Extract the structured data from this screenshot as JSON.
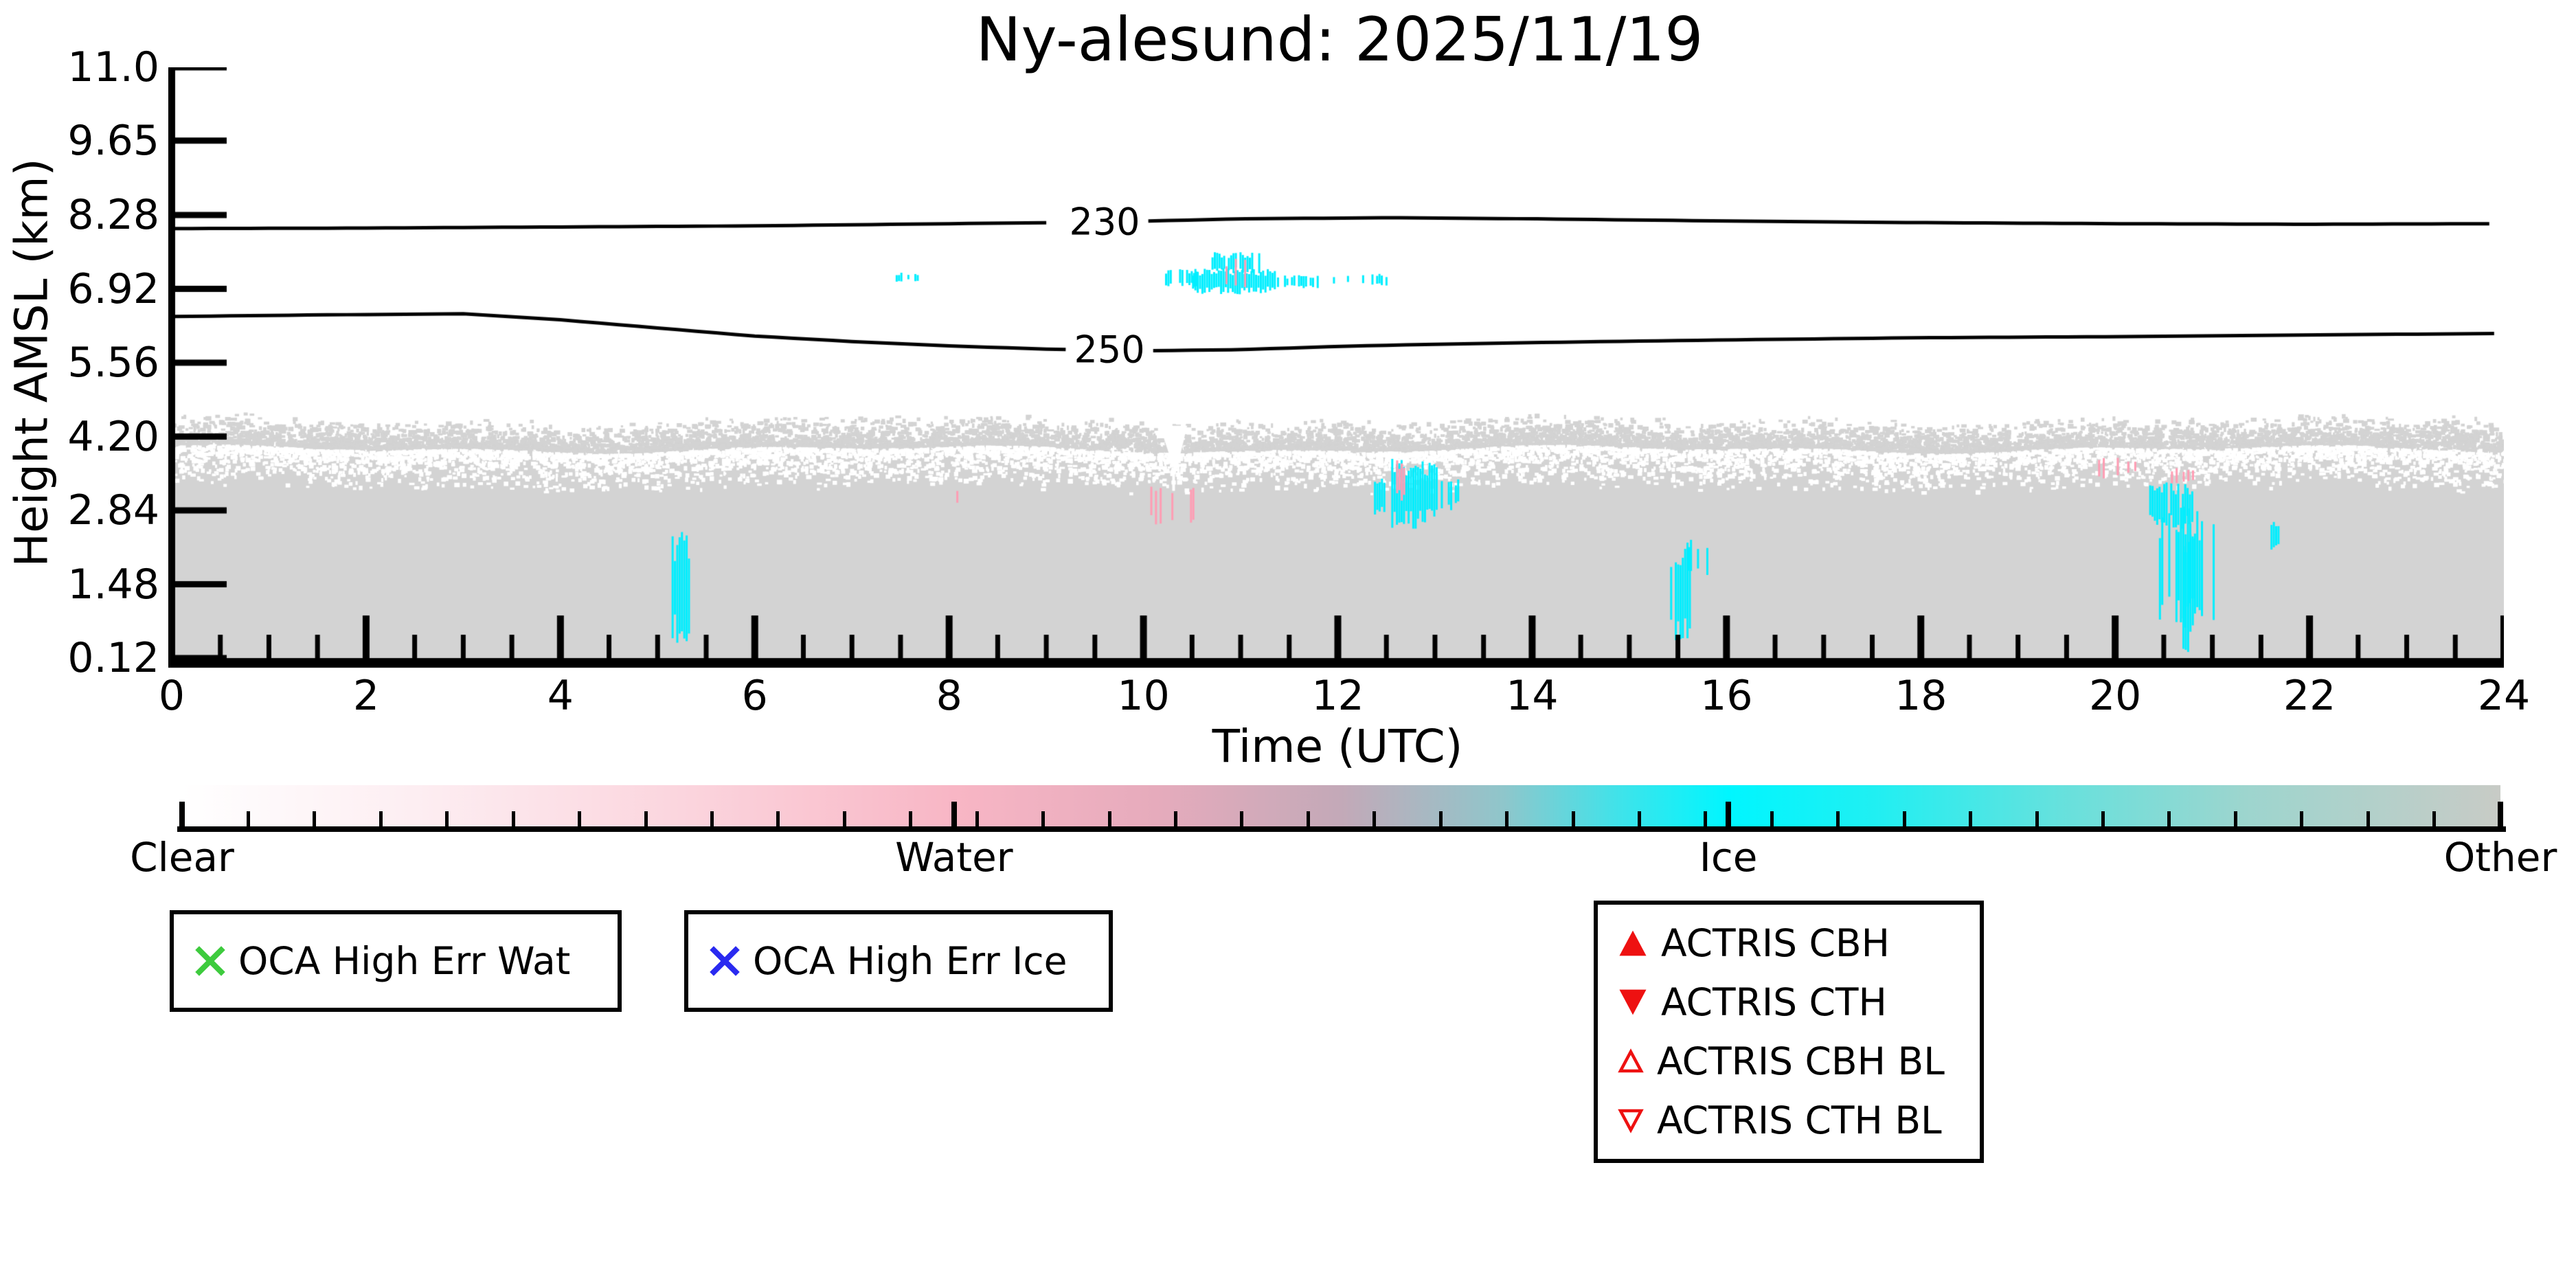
{
  "title": "Ny-alesund: 2025/11/19",
  "axes": {
    "ylabel": "Height AMSL (km)",
    "xlabel": "Time (UTC)",
    "ytick_labels": [
      "11.0",
      "9.65",
      "8.28",
      "6.92",
      "5.56",
      "4.20",
      "2.84",
      "1.48",
      "0.12"
    ],
    "ytick_values": [
      11.0,
      9.65,
      8.28,
      6.92,
      5.56,
      4.2,
      2.84,
      1.48,
      0.12
    ],
    "xtick_labels": [
      "0",
      "2",
      "4",
      "6",
      "8",
      "10",
      "12",
      "14",
      "16",
      "18",
      "20",
      "22",
      "24"
    ],
    "xtick_values": [
      0,
      2,
      4,
      6,
      8,
      10,
      12,
      14,
      16,
      18,
      20,
      22,
      24
    ],
    "x_minor_step": 0.5,
    "xlim": [
      0,
      24
    ],
    "ylim": [
      0.12,
      11.0
    ]
  },
  "chart_data": {
    "type": "heatmap",
    "title": "Ny-alesund: 2025/11/19",
    "xlabel": "Time (UTC)",
    "ylabel": "Height AMSL (km)",
    "xlim": [
      0,
      24
    ],
    "ylim": [
      0.12,
      11.0
    ],
    "grid": false,
    "legend_position": "below",
    "classes": [
      "Clear",
      "Water",
      "Ice",
      "Other"
    ],
    "class_colors": {
      "clear": "#ffffff",
      "water": "#ff9db4",
      "ice": "#00eeff",
      "other": "#d3d3d3"
    },
    "aerosol_layer": {
      "class": "other",
      "t0": 0,
      "t1": 24,
      "top_km": 3.97,
      "speckle_top_km": 4.55,
      "bottom_km": 0.12,
      "color": "#d3d3d3"
    },
    "clear_notch": {
      "t0": 10.17,
      "t1": 10.45,
      "top_km": 4.4,
      "tip_km": 3.2
    },
    "temperature_contours": [
      {
        "level": "230",
        "label_t": 9.6,
        "label_h": 8.15,
        "points": [
          [
            0,
            8.03
          ],
          [
            2,
            8.04
          ],
          [
            4,
            8.06
          ],
          [
            6,
            8.08
          ],
          [
            8,
            8.12
          ],
          [
            9.6,
            8.15
          ],
          [
            11,
            8.21
          ],
          [
            12.5,
            8.23
          ],
          [
            14,
            8.21
          ],
          [
            16,
            8.17
          ],
          [
            18,
            8.14
          ],
          [
            20,
            8.12
          ],
          [
            22,
            8.11
          ],
          [
            24,
            8.12
          ]
        ]
      },
      {
        "level": "250",
        "label_t": 9.65,
        "label_h": 5.8,
        "points": [
          [
            0,
            6.41
          ],
          [
            1.5,
            6.44
          ],
          [
            3,
            6.46
          ],
          [
            4,
            6.35
          ],
          [
            5,
            6.2
          ],
          [
            6,
            6.05
          ],
          [
            7,
            5.95
          ],
          [
            8,
            5.87
          ],
          [
            9,
            5.81
          ],
          [
            10,
            5.78
          ],
          [
            11,
            5.8
          ],
          [
            12,
            5.86
          ],
          [
            13,
            5.9
          ],
          [
            14,
            5.93
          ],
          [
            16,
            5.98
          ],
          [
            18,
            6.02
          ],
          [
            20,
            6.04
          ],
          [
            22,
            6.07
          ],
          [
            24,
            6.1
          ]
        ]
      }
    ],
    "cloud_patches": [
      {
        "class": "ice",
        "t0": 7.45,
        "t1": 7.72,
        "h0": 7.05,
        "h1": 7.22,
        "density": 0.4
      },
      {
        "class": "ice",
        "t0": 10.15,
        "t1": 10.55,
        "h0": 6.95,
        "h1": 7.3,
        "density": 0.55
      },
      {
        "class": "ice",
        "t0": 10.5,
        "t1": 11.35,
        "h0": 6.82,
        "h1": 7.3,
        "density": 0.95
      },
      {
        "class": "ice",
        "t0": 10.7,
        "t1": 11.2,
        "h0": 7.2,
        "h1": 7.6,
        "density": 0.7
      },
      {
        "class": "water",
        "t0": 10.82,
        "t1": 11.05,
        "h0": 6.95,
        "h1": 7.5,
        "density": 0.3
      },
      {
        "class": "ice",
        "t0": 11.35,
        "t1": 11.8,
        "h0": 6.92,
        "h1": 7.18,
        "density": 0.7
      },
      {
        "class": "ice",
        "t0": 11.95,
        "t1": 12.12,
        "h0": 7.0,
        "h1": 7.16,
        "density": 0.45
      },
      {
        "class": "ice",
        "t0": 12.25,
        "t1": 12.5,
        "h0": 6.98,
        "h1": 7.2,
        "density": 0.7
      },
      {
        "class": "ice",
        "t0": 5.12,
        "t1": 5.32,
        "h0": 0.4,
        "h1": 2.45,
        "density": 0.85
      },
      {
        "class": "water",
        "t0": 8.05,
        "t1": 8.14,
        "h0": 2.9,
        "h1": 3.25,
        "density": 0.3
      },
      {
        "class": "water",
        "t0": 9.95,
        "t1": 10.52,
        "h0": 2.55,
        "h1": 3.3,
        "density": 0.22
      },
      {
        "class": "ice",
        "t0": 10.27,
        "t1": 10.34,
        "h0": 2.6,
        "h1": 2.85,
        "density": 0.6
      },
      {
        "class": "ice",
        "t0": 12.3,
        "t1": 12.58,
        "h0": 2.7,
        "h1": 3.45,
        "density": 0.5
      },
      {
        "class": "ice",
        "t0": 12.55,
        "t1": 13.02,
        "h0": 2.5,
        "h1": 3.85,
        "density": 0.9
      },
      {
        "class": "water",
        "t0": 12.6,
        "t1": 12.68,
        "h0": 3.0,
        "h1": 3.78,
        "density": 0.55
      },
      {
        "class": "ice",
        "t0": 13.06,
        "t1": 13.26,
        "h0": 2.8,
        "h1": 3.5,
        "density": 0.45
      },
      {
        "class": "ice",
        "t0": 15.42,
        "t1": 15.62,
        "h0": 0.45,
        "h1": 2.3,
        "density": 0.85
      },
      {
        "class": "ice",
        "t0": 15.6,
        "t1": 15.8,
        "h0": 1.6,
        "h1": 2.35,
        "density": 0.5
      },
      {
        "class": "ice",
        "t0": 19.55,
        "t1": 19.63,
        "h0": 3.0,
        "h1": 3.3,
        "density": 0.4
      },
      {
        "class": "water",
        "t0": 19.8,
        "t1": 20.05,
        "h0": 3.35,
        "h1": 3.85,
        "density": 0.3
      },
      {
        "class": "water",
        "t0": 20.1,
        "t1": 20.22,
        "h0": 3.5,
        "h1": 3.82,
        "density": 0.35
      },
      {
        "class": "ice",
        "t0": 20.35,
        "t1": 20.8,
        "h0": 2.5,
        "h1": 3.4,
        "density": 0.9
      },
      {
        "class": "ice",
        "t0": 20.45,
        "t1": 21.02,
        "h0": 0.6,
        "h1": 3.0,
        "density": 0.55
      },
      {
        "class": "ice",
        "t0": 20.62,
        "t1": 20.8,
        "h0": 0.2,
        "h1": 2.5,
        "density": 0.7
      },
      {
        "class": "water",
        "t0": 20.55,
        "t1": 20.8,
        "h0": 3.3,
        "h1": 3.65,
        "density": 0.45
      },
      {
        "class": "ice",
        "t0": 21.55,
        "t1": 21.7,
        "h0": 2.1,
        "h1": 2.65,
        "density": 0.5
      }
    ]
  },
  "colorbar": {
    "labels": [
      {
        "text": "Clear",
        "frac": 0
      },
      {
        "text": "Water",
        "frac": 0.333
      },
      {
        "text": "Ice",
        "frac": 0.667
      },
      {
        "text": "Other",
        "frac": 1
      }
    ],
    "gradient": [
      [
        0,
        "#ffffff"
      ],
      [
        0.1,
        "#fdeef2"
      ],
      [
        0.22,
        "#fbd4dd"
      ],
      [
        0.333,
        "#f8b6c5"
      ],
      [
        0.42,
        "#e6abbc"
      ],
      [
        0.5,
        "#c3a9b8"
      ],
      [
        0.57,
        "#8fc6cb"
      ],
      [
        0.62,
        "#3fe3ea"
      ],
      [
        0.667,
        "#00f6ff"
      ],
      [
        0.73,
        "#20eff2"
      ],
      [
        0.81,
        "#66e1dd"
      ],
      [
        0.89,
        "#9dd5ce"
      ],
      [
        1,
        "#c8cbc6"
      ]
    ],
    "minor_tick_count": 35
  },
  "legends": {
    "oca_wat": {
      "label": "OCA High Err Wat",
      "marker": "x",
      "color": "#3ecb3e"
    },
    "oca_ice": {
      "label": "OCA High Err Ice",
      "marker": "x",
      "color": "#2a2af0"
    },
    "actris": {
      "color": "#ee1111",
      "items": [
        {
          "label": "ACTRIS CBH",
          "marker": "triangle-up-filled"
        },
        {
          "label": "ACTRIS CTH",
          "marker": "triangle-down-filled"
        },
        {
          "label": "ACTRIS CBH BL",
          "marker": "triangle-up-open"
        },
        {
          "label": "ACTRIS CTH BL",
          "marker": "triangle-down-open"
        }
      ]
    }
  }
}
